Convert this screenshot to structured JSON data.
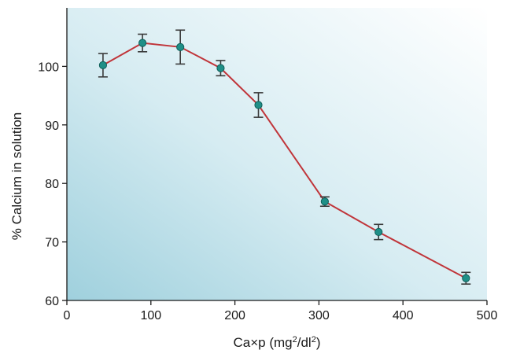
{
  "chart_data": {
    "type": "line",
    "x": [
      43,
      90,
      135,
      183,
      228,
      307,
      371,
      475
    ],
    "series": [
      {
        "values": [
          100.2,
          104.0,
          103.3,
          99.7,
          93.4,
          76.9,
          71.7,
          63.8
        ],
        "err": [
          2.0,
          1.5,
          2.9,
          1.3,
          2.1,
          0.8,
          1.3,
          1.0
        ],
        "line_color": "#c0353a",
        "marker_color": "#1f8f87"
      }
    ],
    "xlim": [
      0,
      500
    ],
    "ylim": [
      60,
      110
    ],
    "xticks": [
      "0",
      "100",
      "200",
      "300",
      "400",
      "500"
    ],
    "yticks": [
      "60",
      "70",
      "80",
      "90",
      "100"
    ],
    "xlabel": {
      "prefix": "Ca×p (mg",
      "sup1": "2",
      "mid": "/dl",
      "sup2": "2",
      "suffix": ")"
    },
    "ylabel": "% Calcium in solution",
    "grid": false,
    "background_gradient": [
      "#9fd0dd",
      "#ffffff"
    ]
  }
}
